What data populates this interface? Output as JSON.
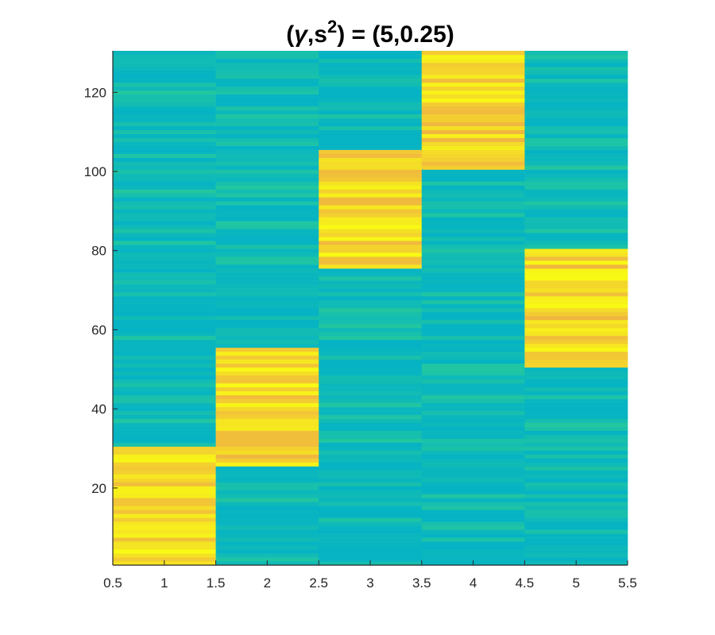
{
  "chart_data": {
    "type": "heatmap",
    "title_parts": [
      "(",
      "γ",
      ",s",
      "2",
      ") = (5,0.25)"
    ],
    "xlim": [
      0.5,
      5.5
    ],
    "ylim": [
      0.5,
      130.5
    ],
    "rows": 130,
    "columns": [
      1,
      2,
      3,
      4,
      5
    ],
    "x_ticks": [
      "0.5",
      "1",
      "1.5",
      "2",
      "2.5",
      "3",
      "3.5",
      "4",
      "4.5",
      "5",
      "5.5"
    ],
    "x_tick_values": [
      0.5,
      1,
      1.5,
      2,
      2.5,
      3,
      3.5,
      4,
      4.5,
      5,
      5.5
    ],
    "y_ticks": [
      "20",
      "40",
      "60",
      "80",
      "100",
      "120"
    ],
    "y_tick_values": [
      20,
      40,
      60,
      80,
      100,
      120
    ],
    "high_blocks": [
      {
        "column": 1,
        "row_start": 1,
        "row_end": 30
      },
      {
        "column": 2,
        "row_start": 26,
        "row_end": 55
      },
      {
        "column": 3,
        "row_start": 76,
        "row_end": 105
      },
      {
        "column": 4,
        "row_start": 101,
        "row_end": 130
      },
      {
        "column": 5,
        "row_start": 51,
        "row_end": 80
      }
    ],
    "colormap": "parula",
    "background_color_range": [
      "#05b3c4",
      "#22c79f"
    ],
    "high_color_range": [
      "#f0b640",
      "#f8fa14"
    ],
    "grid": false
  }
}
